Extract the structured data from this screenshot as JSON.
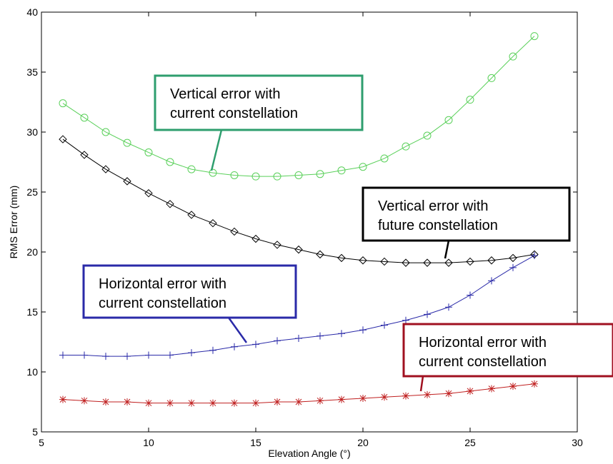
{
  "chart_data": {
    "type": "line",
    "xlabel": "Elevation Angle (°)",
    "ylabel": "RMS Error (mm)",
    "xlim": [
      5,
      30
    ],
    "ylim": [
      5,
      40
    ],
    "xticks": [
      5,
      10,
      15,
      20,
      25,
      30
    ],
    "yticks": [
      5,
      10,
      15,
      20,
      25,
      30,
      35,
      40
    ],
    "grid": false,
    "legend": "none",
    "x": [
      6,
      7,
      8,
      9,
      10,
      11,
      12,
      13,
      14,
      15,
      16,
      17,
      18,
      19,
      20,
      21,
      22,
      23,
      24,
      25,
      26,
      27,
      28
    ],
    "series": [
      {
        "marker": "circle",
        "color": "#5ad05a",
        "values": [
          32.4,
          31.2,
          30.0,
          29.1,
          28.3,
          27.5,
          26.9,
          26.6,
          26.4,
          26.3,
          26.3,
          26.4,
          26.5,
          26.8,
          27.1,
          27.8,
          28.8,
          29.7,
          31.0,
          32.7,
          34.5,
          36.3,
          38.0
        ]
      },
      {
        "marker": "diamond",
        "color": "#000000",
        "values": [
          29.4,
          28.1,
          26.9,
          25.9,
          24.9,
          24.0,
          23.1,
          22.4,
          21.7,
          21.1,
          20.6,
          20.2,
          19.8,
          19.5,
          19.3,
          19.2,
          19.1,
          19.1,
          19.1,
          19.2,
          19.3,
          19.5,
          19.8
        ]
      },
      {
        "marker": "plus",
        "color": "#2a2aa8",
        "values": [
          11.4,
          11.4,
          11.3,
          11.3,
          11.4,
          11.4,
          11.6,
          11.8,
          12.1,
          12.3,
          12.6,
          12.8,
          13.0,
          13.2,
          13.5,
          13.9,
          14.3,
          14.8,
          15.4,
          16.4,
          17.6,
          18.7,
          19.7
        ]
      },
      {
        "marker": "asterisk",
        "color": "#c02020",
        "values": [
          7.7,
          7.6,
          7.5,
          7.5,
          7.4,
          7.4,
          7.4,
          7.4,
          7.4,
          7.4,
          7.5,
          7.5,
          7.6,
          7.7,
          7.8,
          7.9,
          8.0,
          8.1,
          8.2,
          8.4,
          8.6,
          8.8,
          9.0
        ]
      }
    ],
    "annotations": [
      {
        "lines": [
          "Vertical error with",
          "current constellation"
        ],
        "border_color": "#2e9e6e",
        "series_index": 0
      },
      {
        "lines": [
          "Vertical error with",
          "future constellation"
        ],
        "border_color": "#000000",
        "series_index": 1
      },
      {
        "lines": [
          "Horizontal error with",
          "current constellation"
        ],
        "border_color": "#2a2aa8",
        "series_index": 2
      },
      {
        "lines": [
          "Horizontal error with",
          "current constellation"
        ],
        "border_color": "#a01020",
        "series_index": 3
      }
    ]
  }
}
